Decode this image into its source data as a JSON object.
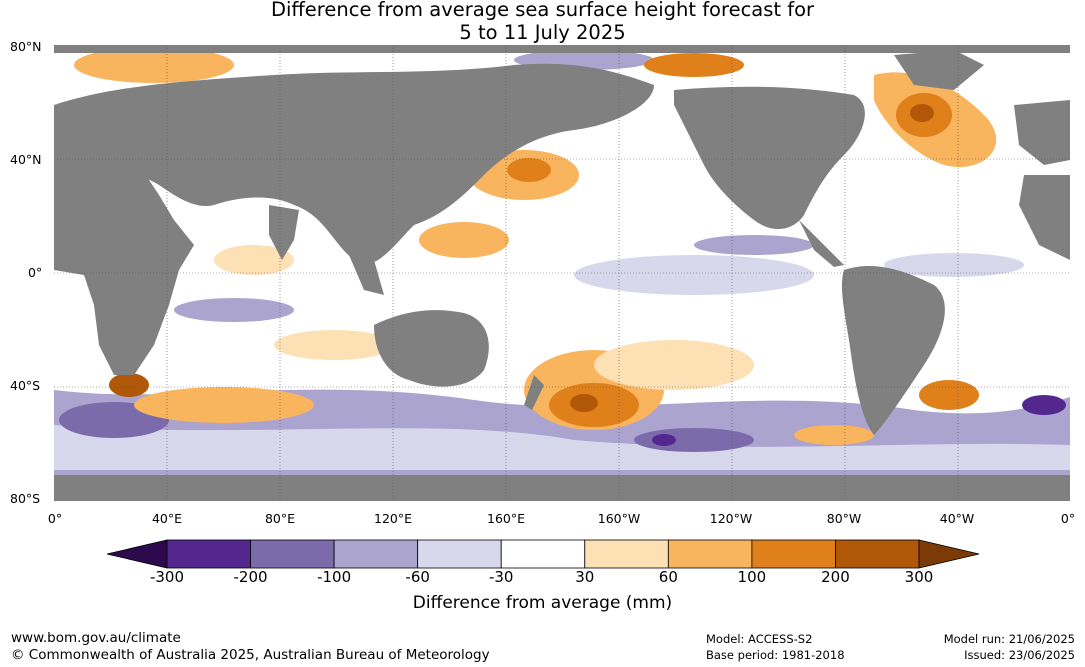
{
  "title": {
    "line1": "Difference from average sea surface height forecast for",
    "line2": "5 to 11 July 2025"
  },
  "map": {
    "lat_labels": [
      "80°N",
      "40°N",
      "0°",
      "40°S",
      "80°S"
    ],
    "lon_labels": [
      "0°",
      "40°E",
      "80°E",
      "120°E",
      "160°E",
      "160°W",
      "120°W",
      "80°W",
      "40°W",
      "0°"
    ],
    "land_color": "#808080",
    "ocean_color": "#ffffff"
  },
  "colorbar": {
    "ticks": [
      "-300",
      "-200",
      "-100",
      "-60",
      "-30",
      "30",
      "60",
      "100",
      "200",
      "300"
    ],
    "colors": [
      "#2d0a4e",
      "#54278f",
      "#7b6bab",
      "#aba4cf",
      "#d8d8ec",
      "#ffffff",
      "#fde0b4",
      "#f9b45e",
      "#e0801a",
      "#b05808",
      "#7c3a06"
    ],
    "label": "Difference from average (mm)"
  },
  "footer": {
    "url": "www.bom.gov.au/climate",
    "copyright": "© Commonwealth of Australia 2025, Australian Bureau of Meteorology",
    "model": "Model: ACCESS-S2",
    "base_period": "Base period: 1981-2018",
    "model_run": "Model run: 21/06/2025",
    "issued": "Issued: 23/06/2025"
  }
}
